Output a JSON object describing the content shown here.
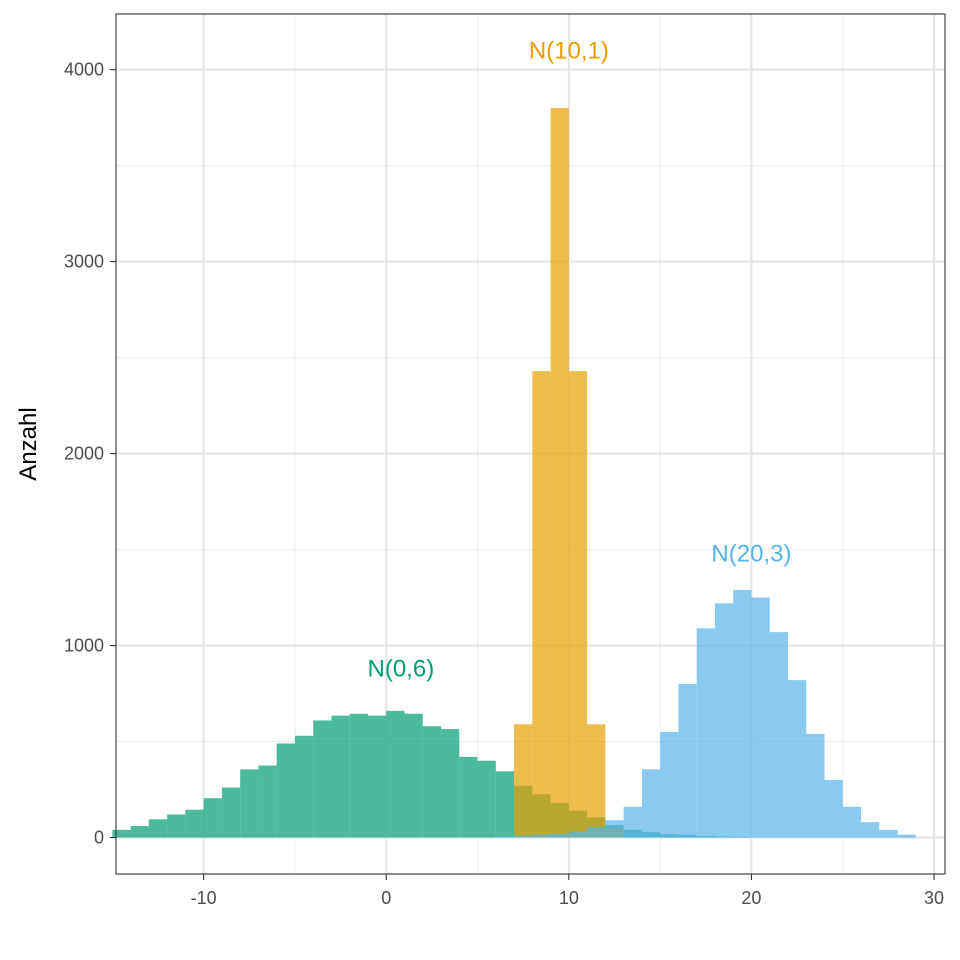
{
  "chart_data": {
    "type": "bar",
    "title": "",
    "xlabel": "",
    "ylabel": "Anzahl",
    "xlim": [
      -14.8,
      30.6
    ],
    "ylim": [
      -190,
      4290
    ],
    "x_ticks": [
      -10,
      0,
      10,
      20,
      30
    ],
    "y_ticks": [
      0,
      1000,
      2000,
      3000,
      4000
    ],
    "grid": true,
    "legend": "none",
    "bin_width": 1,
    "series": [
      {
        "name": "N(0,6)",
        "color": "#009E73",
        "label": {
          "text": "N(0,6)",
          "x": 0.8,
          "y": 880
        },
        "bins": [
          [
            -14.5,
            40
          ],
          [
            -13.5,
            60
          ],
          [
            -12.5,
            95
          ],
          [
            -11.5,
            120
          ],
          [
            -10.5,
            145
          ],
          [
            -9.5,
            205
          ],
          [
            -8.5,
            260
          ],
          [
            -7.5,
            355
          ],
          [
            -6.5,
            375
          ],
          [
            -5.5,
            490
          ],
          [
            -4.5,
            530
          ],
          [
            -3.5,
            610
          ],
          [
            -2.5,
            635
          ],
          [
            -1.5,
            645
          ],
          [
            -0.5,
            635
          ],
          [
            0.5,
            660
          ],
          [
            1.5,
            645
          ],
          [
            2.5,
            580
          ],
          [
            3.5,
            565
          ],
          [
            4.5,
            420
          ],
          [
            5.5,
            400
          ],
          [
            6.5,
            345
          ],
          [
            7.5,
            270
          ],
          [
            8.5,
            225
          ],
          [
            9.5,
            180
          ],
          [
            10.5,
            140
          ],
          [
            11.5,
            105
          ],
          [
            12.5,
            65
          ],
          [
            13.5,
            40
          ],
          [
            14.5,
            28
          ],
          [
            15.5,
            18
          ],
          [
            16.5,
            14
          ],
          [
            17.5,
            8
          ],
          [
            18.5,
            5
          ],
          [
            19.5,
            3
          ]
        ]
      },
      {
        "name": "N(10,1)",
        "color": "#E69F00",
        "label": {
          "text": "N(10,1)",
          "x": 10,
          "y": 4100
        },
        "bins": [
          [
            7.5,
            590
          ],
          [
            8.5,
            2430
          ],
          [
            9.5,
            3800
          ],
          [
            10.5,
            2430
          ],
          [
            11.5,
            590
          ],
          [
            12.5,
            50
          ]
        ]
      },
      {
        "name": "N(20,3)",
        "color": "#56B4E9",
        "label": {
          "text": "N(20,3)",
          "x": 20,
          "y": 1480
        },
        "bins": [
          [
            6.5,
            5
          ],
          [
            7.5,
            10
          ],
          [
            8.5,
            15
          ],
          [
            9.5,
            20
          ],
          [
            10.5,
            30
          ],
          [
            11.5,
            55
          ],
          [
            12.5,
            90
          ],
          [
            13.5,
            160
          ],
          [
            14.5,
            355
          ],
          [
            15.5,
            550
          ],
          [
            16.5,
            800
          ],
          [
            17.5,
            1090
          ],
          [
            18.5,
            1220
          ],
          [
            19.5,
            1290
          ],
          [
            20.5,
            1250
          ],
          [
            21.5,
            1070
          ],
          [
            22.5,
            820
          ],
          [
            23.5,
            540
          ],
          [
            24.5,
            300
          ],
          [
            25.5,
            160
          ],
          [
            26.5,
            80
          ],
          [
            27.5,
            40
          ],
          [
            28.5,
            15
          ]
        ]
      }
    ]
  }
}
